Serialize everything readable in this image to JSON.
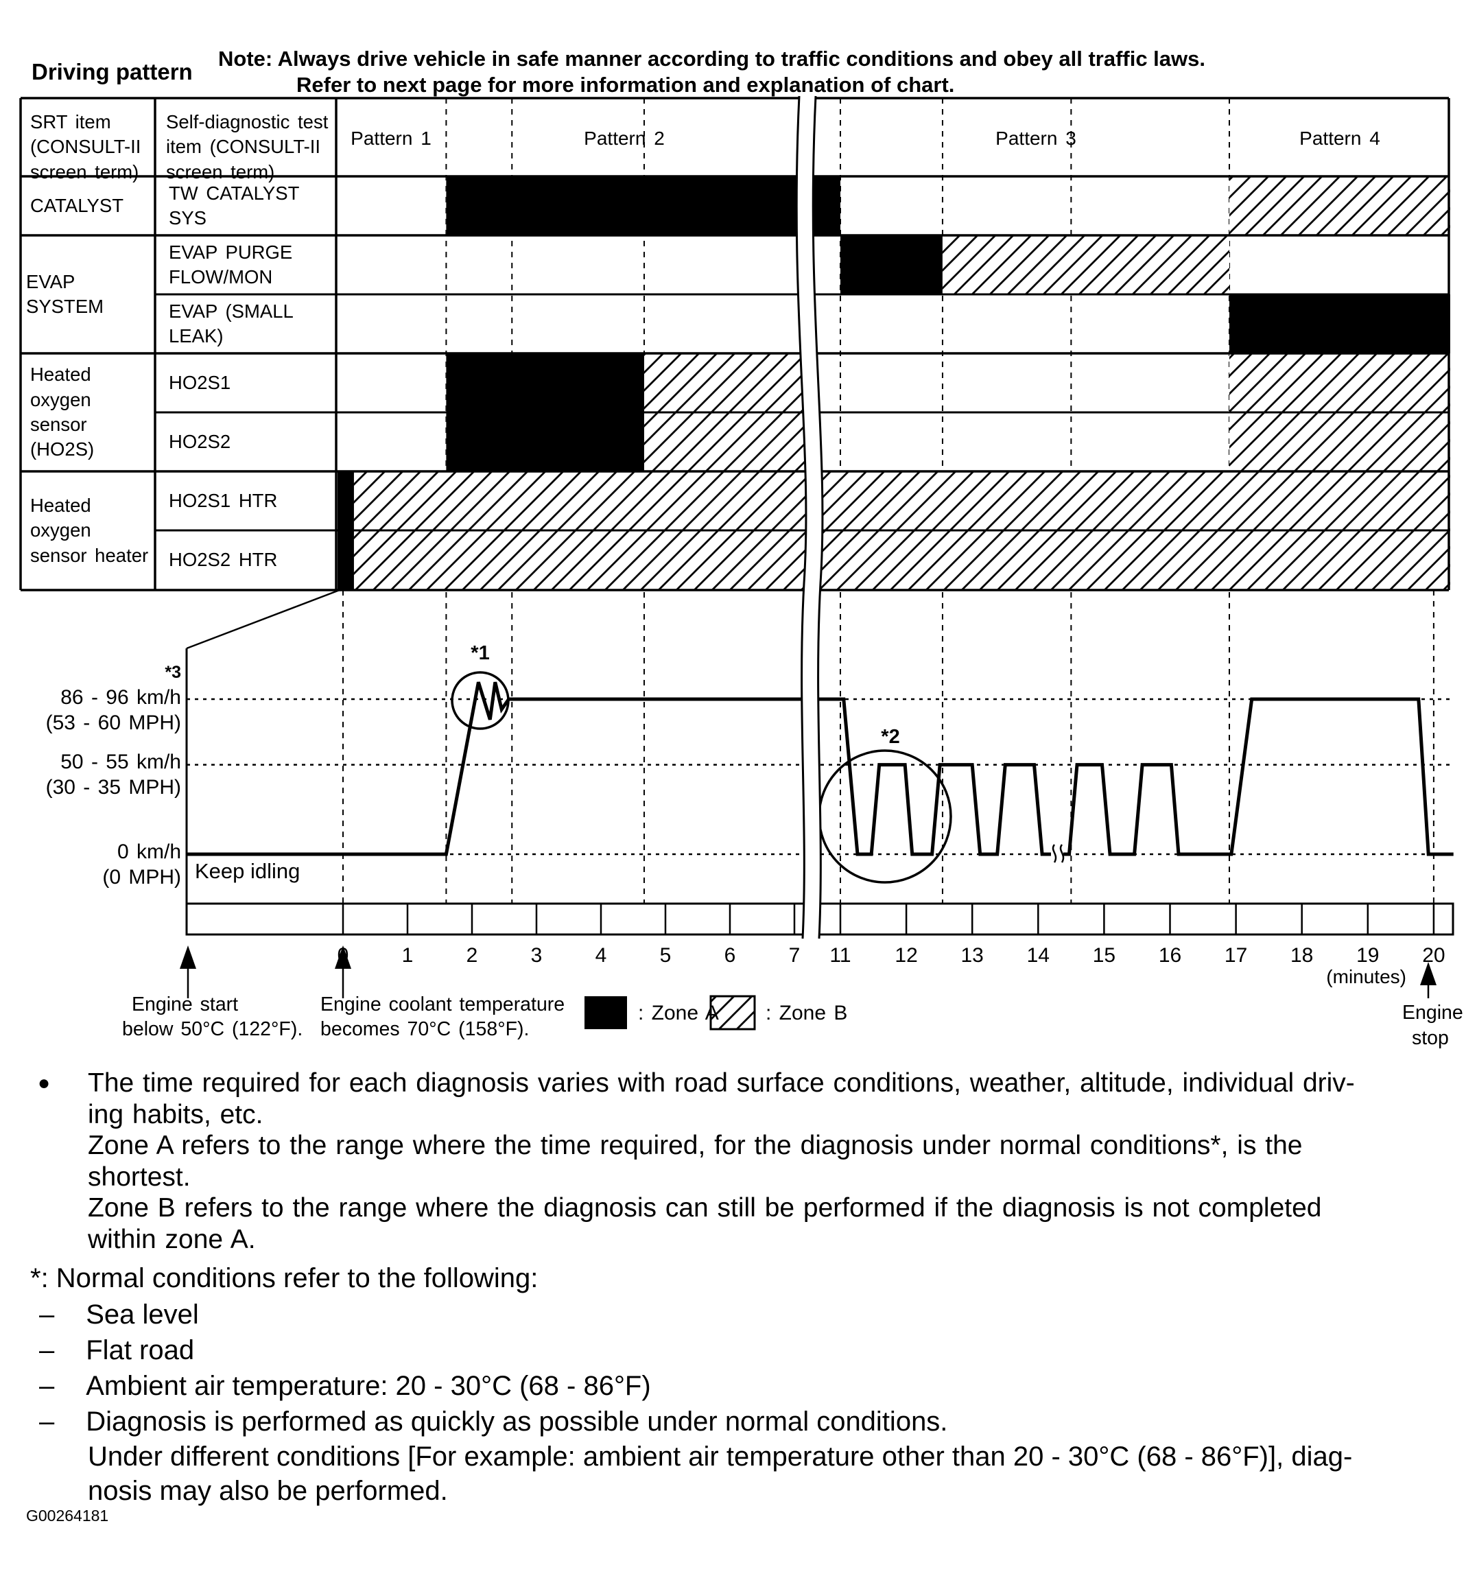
{
  "colors": {
    "ink": "#000000",
    "paper": "#ffffff"
  },
  "header": {
    "title": "Driving pattern",
    "note_line1": "Note: Always drive vehicle in safe manner according to traffic conditions and obey all traffic laws.",
    "note_line2": "Refer to next page for more information and explanation of chart."
  },
  "table": {
    "col1_header": "SRT item (CONSULT-II screen term)",
    "col2_header": "Self-diagnostic test item (CONSULT-II screen term)",
    "patterns": [
      "Pattern 1",
      "Pattern 2",
      "Pattern 3",
      "Pattern 4"
    ],
    "groups": [
      {
        "label": "CATALYST",
        "rows": [
          "TW CATALYST SYS"
        ]
      },
      {
        "label": "EVAP SYSTEM",
        "rows": [
          "EVAP PURGE FLOW/MON",
          "EVAP (SMALL LEAK)"
        ]
      },
      {
        "label": "Heated oxygen sensor (HO2S)",
        "rows": [
          "HO2S1",
          "HO2S2"
        ]
      },
      {
        "label": "Heated oxygen sensor heater",
        "rows": [
          "HO2S1 HTR",
          "HO2S2 HTR"
        ]
      }
    ]
  },
  "chart_data": {
    "type": "gantt+line",
    "title": "Driving pattern",
    "time_axis": {
      "unit": "(minutes)",
      "ticks": [
        0,
        1,
        2,
        3,
        4,
        5,
        6,
        7,
        11,
        12,
        13,
        14,
        15,
        16,
        17,
        18,
        19,
        20
      ],
      "break_between": [
        7,
        11
      ]
    },
    "zone_rows": [
      {
        "item": "TW CATALYST SYS",
        "segments": [
          {
            "zone": "A",
            "from": 1.6,
            "to": 11.0
          },
          {
            "zone": "B",
            "from": 16.9,
            "to": 20.25
          }
        ]
      },
      {
        "item": "EVAP PURGE FLOW/MON",
        "segments": [
          {
            "zone": "A",
            "from": 11.0,
            "to": 12.55
          },
          {
            "zone": "B",
            "from": 12.55,
            "to": 16.9
          }
        ]
      },
      {
        "item": "EVAP (SMALL LEAK)",
        "segments": [
          {
            "zone": "A",
            "from": 16.9,
            "to": 20.25
          }
        ]
      },
      {
        "item": "HO2S1",
        "segments": [
          {
            "zone": "A",
            "from": 1.6,
            "to": 4.67
          },
          {
            "zone": "B",
            "from": 4.67,
            "to": 8.75
          },
          {
            "zone": "B",
            "from": 16.9,
            "to": 20.25
          }
        ]
      },
      {
        "item": "HO2S2",
        "segments": [
          {
            "zone": "A",
            "from": 1.6,
            "to": 4.67
          },
          {
            "zone": "B",
            "from": 4.67,
            "to": 8.75
          },
          {
            "zone": "B",
            "from": 16.9,
            "to": 20.25
          }
        ]
      },
      {
        "item": "HO2S1 HTR",
        "segments": [
          {
            "zone": "A",
            "from": -0.085,
            "to": 0.17
          },
          {
            "zone": "B",
            "from": 0.17,
            "to": 20.25
          }
        ]
      },
      {
        "item": "HO2S2 HTR",
        "segments": [
          {
            "zone": "A",
            "from": -0.085,
            "to": 0.17
          },
          {
            "zone": "B",
            "from": 0.17,
            "to": 20.25
          }
        ]
      }
    ],
    "gridline_minutes_full": [
      1.6,
      2.62,
      4.67,
      11,
      12.55,
      14.5,
      16.9
    ],
    "gridline_minutes_graph_only": [
      0,
      20
    ],
    "speed_profile": {
      "levels": [
        {
          "label": "86 - 96 km/h",
          "sub": "(53 - 60 MPH)",
          "kmh": 91
        },
        {
          "label": "50 - 55 km/h",
          "sub": "(30 - 35 MPH)",
          "kmh": 52.5
        },
        {
          "label": "0 km/h",
          "sub": "(0 MPH)",
          "kmh": 0
        }
      ],
      "idle_label": "Keep idling",
      "trace": [
        [
          -2.43,
          0
        ],
        [
          1.6,
          0
        ],
        [
          2.1,
          101
        ],
        [
          2.28,
          79
        ],
        [
          2.36,
          101
        ],
        [
          2.46,
          85
        ],
        [
          2.57,
          91
        ],
        [
          11.05,
          91
        ],
        [
          11.26,
          0
        ],
        [
          11.47,
          0
        ],
        [
          11.59,
          52.5
        ],
        [
          11.98,
          52.5
        ],
        [
          12.09,
          0
        ],
        [
          12.39,
          0
        ],
        [
          12.51,
          52.5
        ],
        [
          13.0,
          52.5
        ],
        [
          13.12,
          0
        ],
        [
          13.38,
          0
        ],
        [
          13.5,
          52.5
        ],
        [
          13.94,
          52.5
        ],
        [
          14.06,
          0
        ],
        [
          14.47,
          0
        ],
        [
          14.59,
          52.5
        ],
        [
          14.97,
          52.5
        ],
        [
          15.09,
          0
        ],
        [
          15.46,
          0
        ],
        [
          15.58,
          52.5
        ],
        [
          16.02,
          52.5
        ],
        [
          16.13,
          0
        ],
        [
          16.93,
          0
        ],
        [
          17.24,
          91
        ],
        [
          19.77,
          91
        ],
        [
          19.92,
          0
        ],
        [
          20.3,
          0
        ]
      ]
    },
    "annotations": {
      "a1": "*1",
      "a2": "*2",
      "a3": "*3"
    }
  },
  "legend": {
    "engine_start_line1": "Engine start",
    "engine_start_line2": "below 50°C (122°F).",
    "coolant_line1": "Engine coolant temperature",
    "coolant_line2": "becomes 70°C (158°F).",
    "zone_a_label": ": Zone A",
    "zone_b_label": ": Zone B",
    "minutes_label": "(minutes)",
    "engine_stop_line1": "Engine",
    "engine_stop_line2": "stop"
  },
  "notes": {
    "bullet": "●",
    "dash": "–",
    "bullet_lines": [
      "The time required for each diagnosis varies with road surface conditions, weather, altitude, individual driv-",
      "ing habits, etc.",
      "Zone A refers to the range where the time required, for the diagnosis under normal conditions*, is the",
      "shortest.",
      "Zone B refers to the range where the diagnosis can still be performed if the diagnosis is not completed",
      "within zone A."
    ],
    "footnote_header": "*: Normal conditions refer to the following:",
    "dash_items": [
      "Sea level",
      "Flat road",
      "Ambient air temperature: 20 - 30°C (68 - 86°F)",
      "Diagnosis is performed as quickly as possible under normal conditions."
    ],
    "continuation_lines": [
      "Under different conditions [For example: ambient air temperature other than 20 - 30°C (68 - 86°F)], diag-",
      "nosis may also be performed."
    ],
    "figure_id": "G00264181"
  }
}
